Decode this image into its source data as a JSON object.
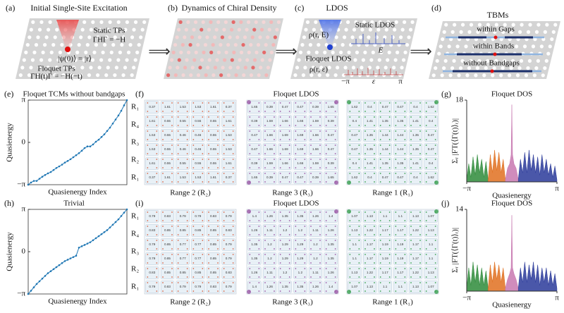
{
  "schematic": {
    "a": {
      "label": "(a)",
      "title": "Initial Single-Site Excitation",
      "static": "Static TPs",
      "static_eq": "ΓHΓ = −H",
      "state": "|ψ(0)⟩ = |r⟩",
      "floquet": "Floquet TPs",
      "floquet_eq": "ΓH(t)Γ = −H(−t)"
    },
    "b": {
      "label": "(b)",
      "title": "Dynamics of Chiral Density"
    },
    "c": {
      "label": "(c)",
      "title": "LDOS",
      "rho_e": "ρ(r, E)",
      "static": "Static LDOS",
      "e": "E",
      "floquet": "Floquet LDOS",
      "rho_eps": "ρ(r, ε)",
      "minus_pi": "−π",
      "eps": "ε",
      "pi": "π"
    },
    "d": {
      "label": "(d)",
      "title": "TBMs",
      "gaps": "within Gaps",
      "bands": "within Bands",
      "none": "without Bandgaps"
    }
  },
  "ldos": [
    {
      "label": "(f)",
      "title": "Floquet LDOS",
      "grids": [
        {
          "caption": "Range 2 (R₂)",
          "color": "#d9684a",
          "rows": [
            [
              0.37,
              1.61,
              1.53,
              1.53,
              1.61,
              0.37
            ],
            [
              1.61,
              0.55,
              0.55,
              0.55,
              0.55,
              1.61
            ],
            [
              1.53,
              0.55,
              0.46,
              0.46,
              0.55,
              1.53
            ],
            [
              1.53,
              0.55,
              0.46,
              0.46,
              0.55,
              1.53
            ],
            [
              1.61,
              0.55,
              0.55,
              0.55,
              0.55,
              1.61
            ],
            [
              0.37,
              1.61,
              1.53,
              1.53,
              1.61,
              0.37
            ]
          ]
        },
        {
          "caption": "Range 3 (R₃)",
          "color": "#9b59a6",
          "rows": [
            [
              1.65,
              0.39,
              0.47,
              0.47,
              0.39,
              1.65
            ],
            [
              0.39,
              1.59,
              1.66,
              1.66,
              1.59,
              0.39
            ],
            [
              0.47,
              1.66,
              1.69,
              1.69,
              1.66,
              0.47
            ],
            [
              0.47,
              1.66,
              1.69,
              1.69,
              1.66,
              0.47
            ],
            [
              0.39,
              1.59,
              1.66,
              1.66,
              1.59,
              0.39
            ],
            [
              1.65,
              0.39,
              0.47,
              0.47,
              0.39,
              1.65
            ]
          ]
        },
        {
          "caption": "Range 1 (R₁)",
          "color": "#3aa050",
          "rows": [
            [
              1.62,
              0.4,
              0.47,
              0.47,
              0.4,
              1.62
            ],
            [
              0.4,
              1.41,
              1.35,
              1.35,
              1.41,
              0.4
            ],
            [
              0.47,
              1.35,
              1.44,
              1.44,
              1.35,
              0.47
            ],
            [
              0.47,
              1.35,
              1.44,
              1.44,
              1.35,
              0.47
            ],
            [
              0.4,
              1.41,
              1.35,
              1.35,
              1.41,
              0.4
            ],
            [
              1.62,
              0.4,
              0.47,
              0.47,
              0.4,
              1.62
            ]
          ]
        }
      ]
    },
    {
      "label": "(i)",
      "title": "Floquet LDOS",
      "grids": [
        {
          "caption": "Range 2 (R₂)",
          "color": "#d9684a",
          "rows": [
            [
              0.79,
              0.83,
              0.79,
              0.79,
              0.83,
              0.79
            ],
            [
              0.83,
              0.85,
              0.85,
              0.85,
              0.85,
              0.83
            ],
            [
              0.79,
              0.85,
              0.77,
              0.77,
              0.85,
              0.79
            ],
            [
              0.79,
              0.85,
              0.77,
              0.77,
              0.85,
              0.79
            ],
            [
              0.83,
              0.85,
              0.85,
              0.85,
              0.85,
              0.83
            ],
            [
              0.79,
              0.83,
              0.79,
              0.79,
              0.83,
              0.79
            ]
          ]
        },
        {
          "caption": "Range 3 (R₃)",
          "color": "#9b59a6",
          "rows": [
            [
              1.4,
              1.26,
              1.35,
              1.35,
              1.26,
              1.4
            ],
            [
              1.26,
              1.11,
              1.2,
              1.2,
              1.11,
              1.26
            ],
            [
              1.35,
              1.2,
              1.29,
              1.29,
              1.2,
              1.35
            ],
            [
              1.35,
              1.2,
              1.29,
              1.29,
              1.2,
              1.35
            ],
            [
              1.26,
              1.11,
              1.2,
              1.2,
              1.11,
              1.26
            ],
            [
              1.4,
              1.26,
              1.35,
              1.35,
              1.26,
              1.4
            ]
          ]
        },
        {
          "caption": "Range 1 (R₁)",
          "color": "#3aa050",
          "rows": [
            [
              1.07,
              1.13,
              1.1,
              1.1,
              1.13,
              1.07
            ],
            [
              1.13,
              1.22,
              1.17,
              1.17,
              1.22,
              1.13
            ],
            [
              1.1,
              1.17,
              1.19,
              1.19,
              1.17,
              1.1
            ],
            [
              1.1,
              1.17,
              1.19,
              1.19,
              1.17,
              1.1
            ],
            [
              1.13,
              1.22,
              1.17,
              1.17,
              1.22,
              1.13
            ],
            [
              1.07,
              1.13,
              1.1,
              1.1,
              1.13,
              1.07
            ]
          ]
        }
      ]
    }
  ],
  "chart_data": [
    {
      "type": "line",
      "label": "(e)",
      "title": "Floquet TCMs without bandgaps",
      "xlabel": "Quasienergy Index",
      "ylabel": "Quasienergy",
      "color": "#1f77b4",
      "x": [
        1,
        2,
        3,
        4,
        5,
        6,
        7,
        8,
        9,
        10,
        11,
        12,
        13,
        14,
        15,
        16,
        17,
        18,
        19,
        20,
        21,
        22,
        23,
        24,
        25,
        26,
        27,
        28,
        29,
        30,
        31,
        32,
        33,
        34,
        35,
        36
      ],
      "values": [
        -3.14,
        -2.98,
        -2.86,
        -2.86,
        -2.7,
        -2.55,
        -2.42,
        -2.3,
        -2.2,
        -2.05,
        -1.9,
        -1.78,
        -1.65,
        -1.5,
        -1.38,
        -1.25,
        -1.1,
        -0.95,
        -0.8,
        -0.62,
        -0.42,
        -0.3,
        -0.3,
        -0.15,
        0.05,
        0.2,
        0.4,
        0.6,
        0.85,
        1.1,
        1.4,
        1.7,
        2.0,
        2.35,
        2.75,
        3.14
      ],
      "xlim": [
        1,
        36
      ],
      "ylim": [
        -3.1416,
        3.1416
      ],
      "yticks": [
        {
          "value": -3.1416,
          "label": "−π"
        },
        0,
        {
          "value": 3.1416,
          "label": "π"
        }
      ],
      "region_labels": [
        "R₁",
        "R₄",
        "R₃",
        "R₂",
        "R₁"
      ]
    },
    {
      "type": "line",
      "label": "(h)",
      "title": "Trivial",
      "xlabel": "Quasienergy Index",
      "ylabel": "Quasienergy",
      "color": "#1f77b4",
      "x": [
        1,
        2,
        3,
        4,
        5,
        6,
        7,
        8,
        9,
        10,
        11,
        12,
        13,
        14,
        15,
        16,
        17,
        18,
        19,
        20,
        21,
        22,
        23,
        24,
        25,
        26,
        27,
        28,
        29,
        30,
        31,
        32,
        33,
        34,
        35,
        36
      ],
      "values": [
        -3.14,
        -2.9,
        -2.65,
        -2.4,
        -2.2,
        -2.0,
        -1.8,
        -1.6,
        -1.45,
        -1.3,
        -1.15,
        -1.0,
        -0.85,
        -0.7,
        -0.6,
        -0.5,
        -0.4,
        -0.3,
        0.3,
        0.4,
        0.5,
        0.6,
        0.7,
        0.85,
        1.0,
        1.15,
        1.3,
        1.45,
        1.6,
        1.8,
        2.0,
        2.2,
        2.4,
        2.65,
        2.9,
        3.14
      ],
      "xlim": [
        1,
        36
      ],
      "ylim": [
        -3.1416,
        3.1416
      ],
      "yticks": [
        {
          "value": -3.1416,
          "label": "−π"
        },
        0,
        {
          "value": 3.1416,
          "label": "π"
        }
      ],
      "region_labels": [
        "R₁",
        "R₄",
        "R₃",
        "R₂",
        "R₁"
      ]
    },
    {
      "type": "area",
      "label": "(g)",
      "title": "Floquet DOS",
      "xlabel": "Quasienergy",
      "ylabel": "Σᵣ |FT(⟨Γ(t)⟩ᵣ)|",
      "xlim": [
        -3.1416,
        3.1416
      ],
      "xticks": [
        {
          "value": -3.1416,
          "label": "−π"
        },
        {
          "value": 3.1416,
          "label": "π"
        }
      ],
      "ylim": [
        0,
        18
      ],
      "yticks": [
        18
      ],
      "series": [
        {
          "color": "#2e8b3a",
          "x": [
            -3.14,
            -3.0,
            -2.85,
            -2.7,
            -2.55,
            -2.4,
            -2.25,
            -2.1,
            -1.95,
            -1.8,
            -1.65
          ],
          "values": [
            0.5,
            4,
            1,
            5.5,
            1.5,
            6,
            2,
            5,
            1,
            4.5,
            0.5
          ]
        },
        {
          "color": "#e07020",
          "x": [
            -1.65,
            -1.5,
            -1.35,
            -1.2,
            -1.05,
            -0.9,
            -0.75,
            -0.6,
            -0.45
          ],
          "values": [
            0.5,
            6,
            2,
            7,
            2.5,
            6.5,
            2,
            5,
            0.5
          ]
        },
        {
          "color": "#c878b0",
          "x": [
            -0.45,
            -0.3,
            -0.15,
            -0.05,
            0,
            0.05,
            0.15,
            0.3,
            0.45
          ],
          "values": [
            0.5,
            3,
            4,
            6,
            17,
            6,
            4,
            3,
            0.5
          ]
        },
        {
          "color": "#2a3a9a",
          "x": [
            0.45,
            0.6,
            0.75,
            0.9,
            1.05,
            1.2,
            1.35,
            1.5,
            1.65,
            1.8,
            1.95,
            2.1,
            2.25,
            2.4,
            2.55,
            2.7,
            2.85,
            3.0,
            3.14
          ],
          "values": [
            0.5,
            5,
            2,
            6.5,
            2,
            7,
            2.5,
            6,
            2,
            5.5,
            1.5,
            6,
            2,
            5,
            1.5,
            4,
            1,
            3.5,
            0.5
          ]
        }
      ]
    },
    {
      "type": "area",
      "label": "(j)",
      "title": "Floquet DOS",
      "xlabel": "Quasienergy",
      "ylabel": "Σᵣ |FT(⟨Γ(t)⟩ᵣ)|",
      "xlim": [
        -3.1416,
        3.1416
      ],
      "xticks": [
        {
          "value": -3.1416,
          "label": "−π"
        },
        {
          "value": 3.1416,
          "label": "π"
        }
      ],
      "ylim": [
        0,
        14
      ],
      "yticks": [
        14
      ],
      "series": [
        {
          "color": "#2e8b3a",
          "x": [
            -3.14,
            -3.0,
            -2.85,
            -2.7,
            -2.55,
            -2.4,
            -2.25,
            -2.1,
            -1.95,
            -1.8,
            -1.65
          ],
          "values": [
            0.5,
            4,
            1,
            5,
            1.5,
            4.5,
            1,
            4,
            1,
            3.5,
            0.5
          ]
        },
        {
          "color": "#e07020",
          "x": [
            -1.65,
            -1.5,
            -1.35,
            -1.2,
            -1.05,
            -0.9,
            -0.75,
            -0.6,
            -0.45
          ],
          "values": [
            0.5,
            4.5,
            1.5,
            5,
            2,
            4.5,
            1.5,
            4,
            0.5
          ]
        },
        {
          "color": "#c878b0",
          "x": [
            -0.45,
            -0.3,
            -0.15,
            -0.05,
            0,
            0.05,
            0.15,
            0.3,
            0.45
          ],
          "values": [
            0.5,
            2,
            3,
            4,
            13,
            4,
            3,
            2,
            0.5
          ]
        },
        {
          "color": "#2a3a9a",
          "x": [
            0.45,
            0.6,
            0.75,
            0.9,
            1.05,
            1.2,
            1.35,
            1.5,
            1.65,
            1.8,
            1.95,
            2.1,
            2.25,
            2.4,
            2.55,
            2.7,
            2.85,
            3.0,
            3.14
          ],
          "values": [
            0.5,
            4,
            1.5,
            5,
            1.5,
            4.5,
            2,
            5,
            1.5,
            4.5,
            1,
            4,
            1.5,
            4,
            1,
            3.5,
            1,
            3,
            0.5
          ]
        }
      ]
    }
  ]
}
